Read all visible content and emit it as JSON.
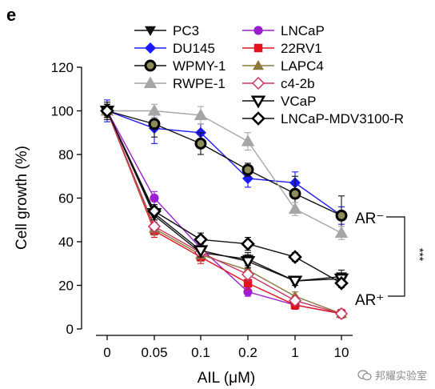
{
  "panel_label": "e",
  "chart_data": {
    "type": "line",
    "xlabel": "AIL (μM)",
    "ylabel": "Cell growth (%)",
    "categories": [
      "0",
      "0.05",
      "0.1",
      "0.2",
      "1",
      "10"
    ],
    "ylim": [
      0,
      120
    ],
    "yticks": [
      0,
      20,
      40,
      60,
      80,
      100,
      120
    ],
    "grid": false,
    "legend_position": "top",
    "series": [
      {
        "name": "PC3",
        "color": "#111111",
        "marker": "tri-down-filled",
        "values": [
          100,
          52,
          35,
          32,
          22,
          24
        ],
        "err": [
          3,
          4,
          3,
          3,
          2,
          3
        ]
      },
      {
        "name": "DU145",
        "color": "#1a1aff",
        "marker": "diamond-filled",
        "values": [
          100,
          92,
          90,
          69,
          67,
          52
        ],
        "err": [
          5,
          7,
          4,
          4,
          5,
          4
        ]
      },
      {
        "name": "WPMY-1",
        "color": "#111111",
        "marker": "circle-olive",
        "values": [
          100,
          94,
          85,
          73,
          62,
          52
        ],
        "err": [
          4,
          6,
          5,
          3,
          8,
          9
        ]
      },
      {
        "name": "RWPE-1",
        "color": "#a6a6a6",
        "marker": "tri-up-gray",
        "values": [
          100,
          100,
          98,
          86,
          55,
          44
        ],
        "err": [
          3,
          3,
          4,
          4,
          3,
          3
        ]
      },
      {
        "name": "LNCaP",
        "color": "#9b1fcf",
        "marker": "circle-purple",
        "values": [
          100,
          60,
          37,
          17,
          11,
          7
        ],
        "err": [
          3,
          3,
          3,
          2,
          2,
          2
        ]
      },
      {
        "name": "22RV1",
        "color": "#e3121c",
        "marker": "square-red",
        "values": [
          100,
          45,
          33,
          21,
          11,
          7
        ],
        "err": [
          3,
          3,
          3,
          3,
          2,
          2
        ]
      },
      {
        "name": "LAPC4",
        "color": "#8c7a3c",
        "marker": "tri-up-olive",
        "values": [
          100,
          46,
          34,
          27,
          15,
          7
        ],
        "err": [
          3,
          3,
          3,
          3,
          2,
          2
        ]
      },
      {
        "name": "c4-2b",
        "color": "#c8345e",
        "marker": "diamond-pink-open",
        "values": [
          100,
          47,
          35,
          25,
          13,
          7
        ],
        "err": [
          3,
          3,
          3,
          3,
          2,
          2
        ]
      },
      {
        "name": "VCaP",
        "color": "#111111",
        "marker": "tri-down-open",
        "values": [
          100,
          53,
          36,
          31,
          22,
          23
        ],
        "err": [
          3,
          3,
          3,
          3,
          2,
          2
        ]
      },
      {
        "name": "LNCaP-MDV3100-R",
        "color": "#111111",
        "marker": "diamond-open",
        "values": [
          100,
          54,
          41,
          39,
          33,
          21
        ],
        "err": [
          3,
          3,
          3,
          3,
          2,
          2
        ]
      }
    ],
    "annotations": {
      "ar_neg": "AR⁻",
      "ar_pos": "AR⁺",
      "significance": "***"
    }
  },
  "watermark_text": "邦耀实验室"
}
